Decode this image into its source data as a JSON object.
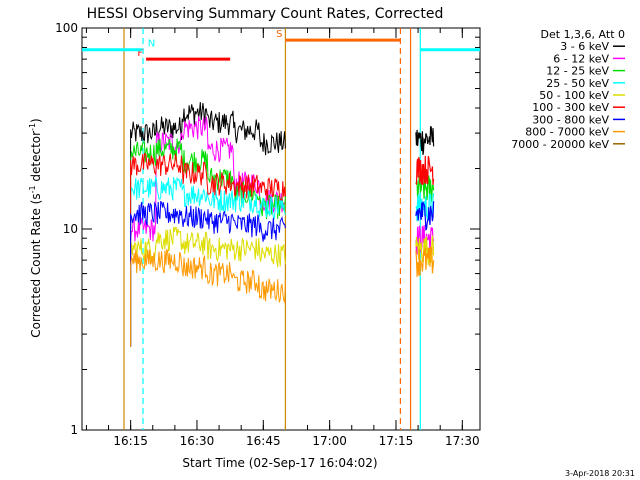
{
  "chart_data": {
    "type": "line",
    "title": "HESSI Observing Summary Count Rates, Corrected",
    "xlabel": "Start Time (02-Sep-17 16:04:02)",
    "ylabel_main": "Corrected Count Rate (s",
    "ylabel_sup1": "-1",
    "ylabel_mid": " detector",
    "ylabel_sup2": "-1",
    "ylabel_end": ")",
    "footer_date": "3-Apr-2018 20:31",
    "y_scale": "log",
    "ylim": [
      1,
      100
    ],
    "xlim_minutes": [
      0,
      80
    ],
    "grid": false,
    "legend_placement": "right",
    "x_ticks": [
      {
        "label": "16:15",
        "min": 11
      },
      {
        "label": "16:30",
        "min": 26
      },
      {
        "label": "16:45",
        "min": 41
      },
      {
        "label": "17:00",
        "min": 56
      },
      {
        "label": "17:15",
        "min": 71
      },
      {
        "label": "17:30",
        "min": 86
      }
    ],
    "y_ticks": [
      {
        "label": "1",
        "value": 1
      },
      {
        "label": "10",
        "value": 10
      },
      {
        "label": "100",
        "value": 100
      }
    ],
    "legend_header": "Det 1,3,6, Att 0",
    "series": [
      {
        "name": "3 - 6 keV",
        "color": "#000000",
        "levels": [
          30,
          32,
          38,
          34,
          31,
          27
        ],
        "late": [
          28
        ]
      },
      {
        "name": "6 - 12 keV",
        "color": "#ff00ff",
        "levels": [
          10,
          27,
          32,
          25,
          17,
          14
        ],
        "late": [
          9
        ]
      },
      {
        "name": "12 - 25 keV",
        "color": "#00dd00",
        "levels": [
          24,
          25,
          22,
          18,
          15,
          13
        ],
        "late": [
          16
        ]
      },
      {
        "name": "25 - 50 keV",
        "color": "#00ffff",
        "levels": [
          16,
          16,
          15,
          14,
          14,
          13
        ],
        "late": [
          13
        ]
      },
      {
        "name": "50 - 100 keV",
        "color": "#dddd00",
        "levels": [
          8,
          9,
          8.5,
          8,
          8,
          7.5
        ],
        "late": [
          8
        ]
      },
      {
        "name": "100 - 300 keV",
        "color": "#ff0000",
        "levels": [
          21,
          21,
          19,
          17,
          16.5,
          16
        ],
        "late": [
          20
        ]
      },
      {
        "name": "300 - 800 keV",
        "color": "#0000ff",
        "levels": [
          12,
          12,
          11.5,
          11,
          10.5,
          10
        ],
        "late": [
          12
        ]
      },
      {
        "name": "800 - 7000 keV",
        "color": "#ff9900",
        "levels": [
          7,
          7,
          6.5,
          6,
          5.5,
          5
        ],
        "late": [
          7
        ]
      },
      {
        "name": "7000 - 20000 keV",
        "color": "#996600",
        "levels": [],
        "late": []
      }
    ],
    "observing_flags": [
      {
        "label": "F",
        "color": "#ff0000",
        "start_min": 14.5,
        "end_min": 33.5,
        "level": 70
      },
      {
        "label": "N",
        "color": "#00ffff",
        "start_min": -8,
        "end_min": 13.5,
        "level": 78
      },
      {
        "label": "S",
        "color": "#ff6600",
        "start_min": 46,
        "end_min": 72,
        "level": 87
      },
      {
        "label": "",
        "color": "#00ffff",
        "start_min": 76.5,
        "end_min": 93.5,
        "level": 78
      }
    ],
    "vertical_markers": [
      {
        "min": 9.5,
        "color": "#cc8800",
        "style": "solid"
      },
      {
        "min": 13.8,
        "color": "#00ffff",
        "style": "dashed"
      },
      {
        "min": 46,
        "color": "#cc8800",
        "style": "solid"
      },
      {
        "min": 72,
        "color": "#ff6600",
        "style": "dashed"
      },
      {
        "min": 74.3,
        "color": "#ff6600",
        "style": "solid"
      },
      {
        "min": 76.5,
        "color": "#00ffff",
        "style": "solid"
      },
      {
        "min": 93.5,
        "color": "#00ffff",
        "style": "dashed"
      }
    ],
    "data_segments": [
      {
        "start_min": 11,
        "end_min": 46
      },
      {
        "start_min": 75.5,
        "end_min": 79.5
      }
    ]
  }
}
